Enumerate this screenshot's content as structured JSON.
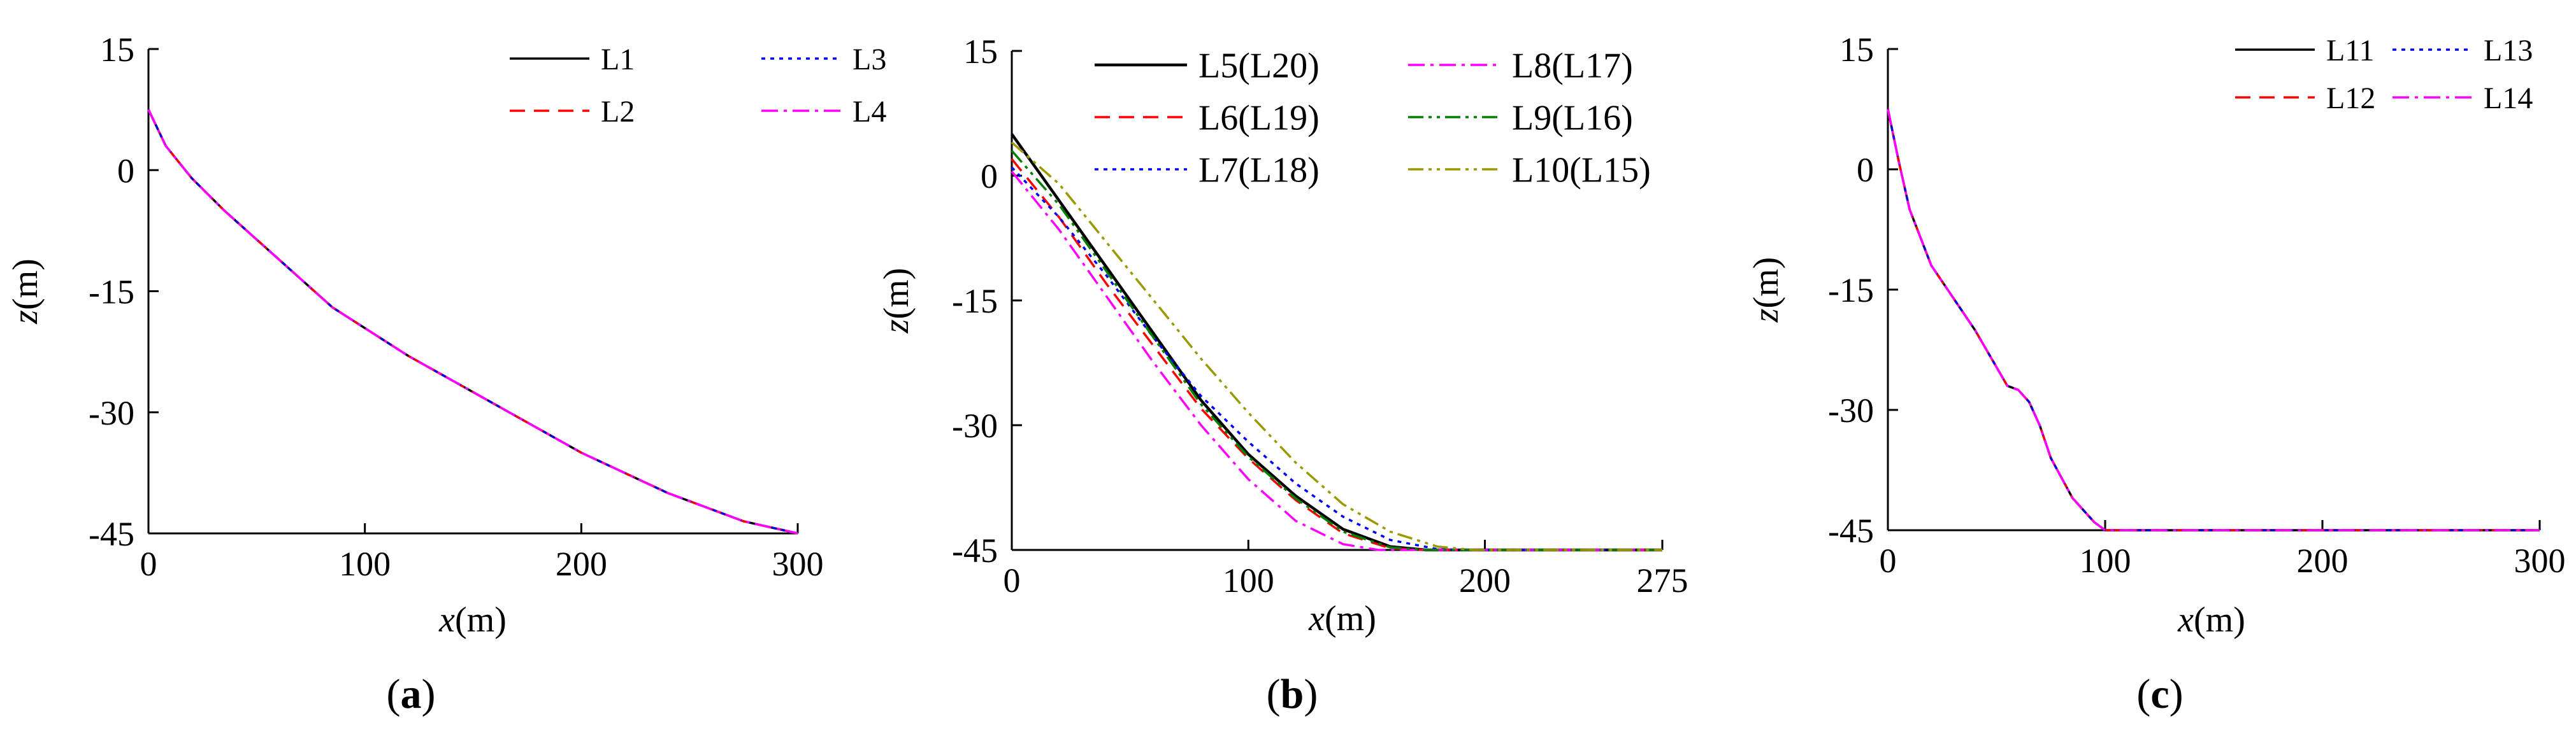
{
  "chart_data": [
    {
      "panel_label": "a",
      "type": "line",
      "xlabel_var": "x",
      "xlabel_unit": "(m)",
      "ylabel_var": "z",
      "ylabel_unit": "(m)",
      "xlim": [
        0,
        300
      ],
      "ylim": [
        -45,
        15
      ],
      "xticks": [
        0,
        100,
        200,
        300
      ],
      "yticks": [
        15,
        0,
        -15,
        -30,
        -45
      ],
      "grid": false,
      "legend_position": "top-right",
      "legend_columns": 2,
      "series": [
        {
          "name": "L1",
          "color": "#000000",
          "dash": "solid",
          "x": [
            0,
            8,
            20,
            35,
            60,
            85,
            120,
            160,
            200,
            240,
            275,
            300
          ],
          "y": [
            7.5,
            3,
            -1,
            -5,
            -11,
            -17,
            -23,
            -29,
            -35,
            -40,
            -43.5,
            -45
          ]
        },
        {
          "name": "L2",
          "color": "#ff0000",
          "dash": "dashed",
          "x": [
            0,
            8,
            20,
            35,
            60,
            85,
            120,
            160,
            200,
            240,
            275,
            300
          ],
          "y": [
            7.5,
            3,
            -1,
            -5,
            -11,
            -17,
            -23,
            -29,
            -35,
            -40,
            -43.5,
            -45
          ]
        },
        {
          "name": "L3",
          "color": "#0000ff",
          "dash": "dotted",
          "x": [
            0,
            8,
            20,
            35,
            60,
            85,
            120,
            160,
            200,
            240,
            275,
            300
          ],
          "y": [
            7.5,
            3,
            -1,
            -5,
            -11,
            -17,
            -23,
            -29,
            -35,
            -40,
            -43.5,
            -45
          ]
        },
        {
          "name": "L4",
          "color": "#ff00ff",
          "dash": "dashdot",
          "x": [
            0,
            8,
            20,
            35,
            60,
            85,
            120,
            160,
            200,
            240,
            275,
            300
          ],
          "y": [
            7.5,
            3,
            -1,
            -5,
            -11,
            -17,
            -23,
            -29,
            -35,
            -40,
            -43.5,
            -45
          ]
        }
      ]
    },
    {
      "panel_label": "b",
      "type": "line",
      "xlabel_var": "x",
      "xlabel_unit": "(m)",
      "ylabel_var": "z",
      "ylabel_unit": "(m)",
      "xlim": [
        0,
        275
      ],
      "ylim": [
        -45,
        15
      ],
      "xticks": [
        0,
        100,
        200,
        275
      ],
      "yticks": [
        15,
        0,
        -15,
        -30,
        -45
      ],
      "grid": false,
      "legend_position": "top",
      "legend_columns": 2,
      "series": [
        {
          "name": "L5(L20)",
          "color": "#000000",
          "dash": "solid",
          "x": [
            0,
            20,
            40,
            60,
            80,
            100,
            120,
            140,
            160,
            175,
            275
          ],
          "y": [
            5,
            -3,
            -11,
            -19,
            -27,
            -33.5,
            -38.5,
            -42.5,
            -44.6,
            -45,
            -45
          ]
        },
        {
          "name": "L6(L19)",
          "color": "#ff0000",
          "dash": "dashed",
          "x": [
            0,
            20,
            40,
            60,
            80,
            100,
            120,
            140,
            160,
            175,
            275
          ],
          "y": [
            2,
            -5,
            -13,
            -20.5,
            -28,
            -34,
            -39,
            -43,
            -44.8,
            -45,
            -45
          ]
        },
        {
          "name": "L7(L18)",
          "color": "#0000ff",
          "dash": "dotted",
          "x": [
            0,
            20,
            40,
            60,
            80,
            100,
            120,
            140,
            160,
            180,
            190,
            275
          ],
          "y": [
            1,
            -5,
            -12,
            -19.5,
            -26.5,
            -32,
            -37,
            -41,
            -43.8,
            -44.9,
            -45,
            -45
          ]
        },
        {
          "name": "L8(L17)",
          "color": "#ff00ff",
          "dash": "dashdot",
          "x": [
            0,
            20,
            40,
            60,
            80,
            100,
            120,
            140,
            155,
            165,
            275
          ],
          "y": [
            0.5,
            -6.5,
            -14.5,
            -22.5,
            -30,
            -36.5,
            -41.5,
            -44.3,
            -45,
            -45,
            -45
          ]
        },
        {
          "name": "L9(L16)",
          "color": "#008000",
          "dash": "dashdotdot",
          "x": [
            0,
            20,
            40,
            60,
            80,
            100,
            120,
            140,
            160,
            175,
            275
          ],
          "y": [
            3,
            -3.5,
            -11.5,
            -19.5,
            -27.5,
            -33.8,
            -38.8,
            -42.8,
            -44.7,
            -45,
            -45
          ]
        },
        {
          "name": "L10(L15)",
          "color": "#999900",
          "dash": "dashdotdot",
          "x": [
            0,
            20,
            40,
            60,
            80,
            100,
            120,
            140,
            160,
            180,
            195,
            275
          ],
          "y": [
            4,
            -1,
            -8,
            -15,
            -22,
            -28.5,
            -34.5,
            -39.5,
            -42.8,
            -44.6,
            -45,
            -45
          ]
        }
      ]
    },
    {
      "panel_label": "c",
      "type": "line",
      "xlabel_var": "x",
      "xlabel_unit": "(m)",
      "ylabel_var": "z",
      "ylabel_unit": "(m)",
      "xlim": [
        0,
        300
      ],
      "ylim": [
        -45,
        15
      ],
      "xticks": [
        0,
        100,
        200,
        300
      ],
      "yticks": [
        15,
        0,
        -15,
        -30,
        -45
      ],
      "grid": false,
      "legend_position": "top-right",
      "legend_columns": 2,
      "series": [
        {
          "name": "L11",
          "color": "#000000",
          "dash": "solid",
          "x": [
            0,
            5,
            10,
            20,
            40,
            55,
            60,
            65,
            70,
            75,
            85,
            95,
            100,
            300
          ],
          "y": [
            7.5,
            1,
            -5,
            -12,
            -20,
            -27,
            -27.5,
            -29,
            -32,
            -36,
            -41,
            -44,
            -45,
            -45
          ]
        },
        {
          "name": "L12",
          "color": "#ff0000",
          "dash": "dashed",
          "x": [
            0,
            5,
            10,
            20,
            40,
            55,
            60,
            65,
            70,
            75,
            85,
            95,
            100,
            300
          ],
          "y": [
            7.5,
            1,
            -5,
            -12,
            -20,
            -27,
            -27.5,
            -29,
            -32,
            -36,
            -41,
            -44,
            -45,
            -45
          ]
        },
        {
          "name": "L13",
          "color": "#0000ff",
          "dash": "dotted",
          "x": [
            0,
            5,
            10,
            20,
            40,
            55,
            60,
            65,
            70,
            75,
            85,
            95,
            100,
            300
          ],
          "y": [
            7.5,
            1,
            -5,
            -12,
            -20,
            -27,
            -27.5,
            -29,
            -32,
            -36,
            -41,
            -44,
            -45,
            -45
          ]
        },
        {
          "name": "L14",
          "color": "#ff00ff",
          "dash": "dashdot",
          "x": [
            0,
            5,
            10,
            20,
            40,
            55,
            60,
            65,
            70,
            75,
            85,
            95,
            100,
            300
          ],
          "y": [
            7.5,
            1,
            -5,
            -12,
            -20,
            -27,
            -27.5,
            -29,
            -32,
            -36,
            -41,
            -44,
            -45,
            -45
          ]
        }
      ]
    }
  ]
}
